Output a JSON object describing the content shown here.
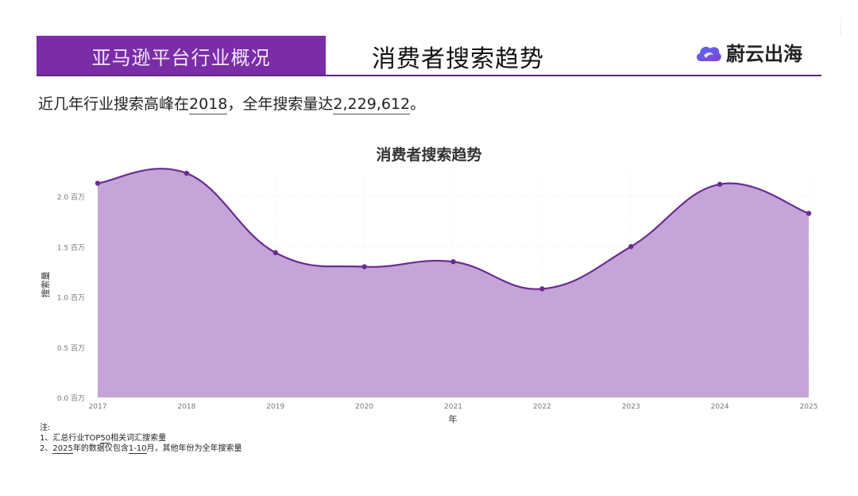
{
  "header": {
    "section_label": "亚马逊平台行业概况",
    "slide_title": "消费者搜索趋势",
    "brand_name": "蔚云出海",
    "brand_color": "#7a2da6"
  },
  "summary": {
    "prefix": "近几年行业搜索高峰在",
    "peak_year": "2018",
    "middle": "，全年搜索量达",
    "peak_value": "2,229,612",
    "suffix": "。"
  },
  "chart_data": {
    "type": "area",
    "title": "消费者搜索趋势",
    "xlabel": "年",
    "ylabel": "搜索量",
    "categories": [
      "2017",
      "2018",
      "2019",
      "2020",
      "2021",
      "2022",
      "2023",
      "2024",
      "2025"
    ],
    "series": [
      {
        "name": "搜索量",
        "values": [
          2130000,
          2229612,
          1440000,
          1300000,
          1350000,
          1080000,
          1500000,
          2120000,
          1830000
        ],
        "line_color": "#6a2c91",
        "fill_color": "#c5a5d8"
      }
    ],
    "ylim": [
      0,
      2300000
    ],
    "yticks": [
      {
        "value": 0,
        "label": "0.0 百万"
      },
      {
        "value": 500000,
        "label": "0.5 百万"
      },
      {
        "value": 1000000,
        "label": "1.0 百万"
      },
      {
        "value": 1500000,
        "label": "1.5 百万"
      },
      {
        "value": 2000000,
        "label": "2.0 百万"
      }
    ],
    "grid": true,
    "legend": "none"
  },
  "notes": {
    "heading": "注:",
    "line1_prefix": "1、汇总行业TOP",
    "line1_num": "50",
    "line1_suffix": "相关词汇搜索量",
    "line2_prefix": "2、",
    "line2_year": "2025",
    "line2_mid": "年的数据仅包含",
    "line2_range": "1-10",
    "line2_suffix": "月，其他年份为全年搜索量"
  }
}
